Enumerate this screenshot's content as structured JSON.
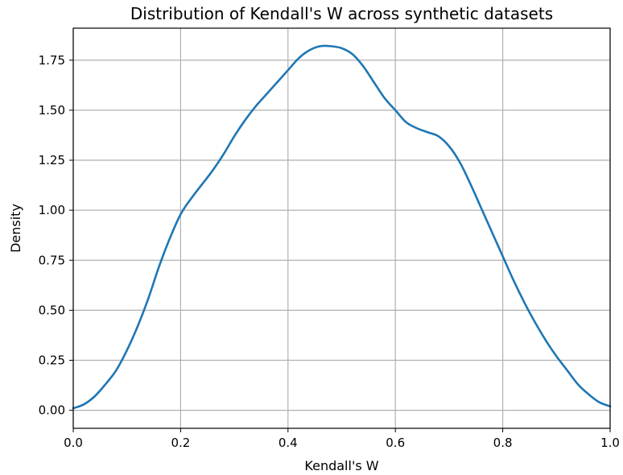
{
  "chart_data": {
    "type": "line",
    "title": "Distribution of Kendall's W across synthetic datasets",
    "xlabel": "Kendall's W",
    "ylabel": "Density",
    "xlim": [
      0.0,
      1.0
    ],
    "ylim": [
      -0.09,
      1.91
    ],
    "xticks": [
      0.0,
      0.2,
      0.4,
      0.6,
      0.8,
      1.0
    ],
    "xtick_labels": [
      "0.0",
      "0.2",
      "0.4",
      "0.6",
      "0.8",
      "1.0"
    ],
    "yticks": [
      0.0,
      0.25,
      0.5,
      0.75,
      1.0,
      1.25,
      1.5,
      1.75
    ],
    "ytick_labels": [
      "0.00",
      "0.25",
      "0.50",
      "0.75",
      "1.00",
      "1.25",
      "1.50",
      "1.75"
    ],
    "grid": true,
    "series": [
      {
        "color": "#1f77b4",
        "x": [
          0.0,
          0.02,
          0.04,
          0.06,
          0.08,
          0.1,
          0.12,
          0.14,
          0.16,
          0.18,
          0.2,
          0.22,
          0.24,
          0.26,
          0.28,
          0.3,
          0.32,
          0.34,
          0.36,
          0.38,
          0.4,
          0.42,
          0.44,
          0.46,
          0.48,
          0.5,
          0.52,
          0.54,
          0.56,
          0.58,
          0.6,
          0.62,
          0.64,
          0.66,
          0.68,
          0.7,
          0.72,
          0.74,
          0.76,
          0.78,
          0.8,
          0.82,
          0.84,
          0.86,
          0.88,
          0.9,
          0.92,
          0.94,
          0.96,
          0.98,
          1.0
        ],
        "y": [
          0.01,
          0.03,
          0.07,
          0.13,
          0.2,
          0.3,
          0.42,
          0.56,
          0.72,
          0.86,
          0.98,
          1.06,
          1.13,
          1.2,
          1.28,
          1.37,
          1.45,
          1.52,
          1.58,
          1.64,
          1.7,
          1.76,
          1.8,
          1.82,
          1.82,
          1.81,
          1.78,
          1.72,
          1.64,
          1.56,
          1.5,
          1.44,
          1.41,
          1.39,
          1.37,
          1.32,
          1.24,
          1.13,
          1.01,
          0.89,
          0.77,
          0.65,
          0.54,
          0.44,
          0.35,
          0.27,
          0.2,
          0.13,
          0.08,
          0.04,
          0.02
        ]
      }
    ]
  }
}
